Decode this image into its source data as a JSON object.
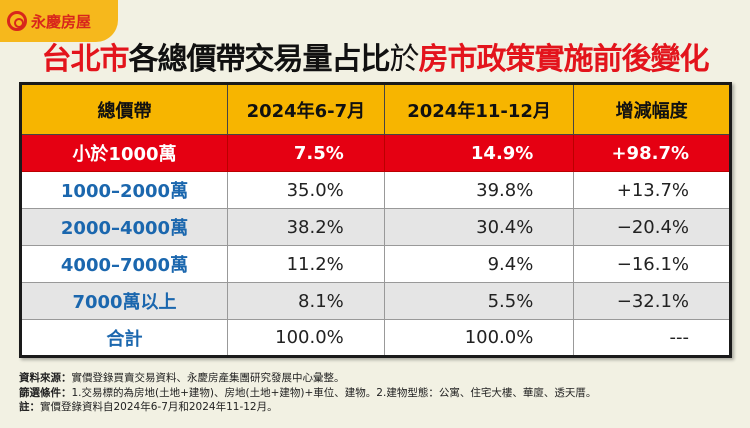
{
  "logo": {
    "text": "永慶房屋"
  },
  "title": {
    "part1": "台北市",
    "part2": "各總價帶交易量占比",
    "part3": "於",
    "part4": "房市政策實施前後變化"
  },
  "table": {
    "headers": [
      "總價帶",
      "2024年6-7月",
      "2024年11-12月",
      "增減幅度"
    ],
    "rows": [
      [
        "小於1000萬",
        "7.5%",
        "14.9%",
        "+98.7%"
      ],
      [
        "1000–2000萬",
        "35.0%",
        "39.8%",
        "+13.7%"
      ],
      [
        "2000–4000萬",
        "38.2%",
        "30.4%",
        "−20.4%"
      ],
      [
        "4000–7000萬",
        "11.2%",
        "9.4%",
        "−16.1%"
      ],
      [
        "7000萬以上",
        "8.1%",
        "5.5%",
        "−32.1%"
      ],
      [
        "合計",
        "100.0%",
        "100.0%",
        "---"
      ]
    ]
  },
  "notes": [
    {
      "label": "資料來源：",
      "text": "實價登錄買賣交易資料、永慶房產集團研究發展中心彙整。"
    },
    {
      "label": "篩選條件：",
      "text": "1.交易標的為房地(土地+建物)、房地(土地+建物)+車位、建物。2.建物型態：公寓、住宅大樓、華廈、透天厝。"
    },
    {
      "label": "註：",
      "text": "實價登錄資料自2024年6-7月和2024年11-12月。"
    }
  ],
  "colors": {
    "highlight": "#e50012",
    "header": "#f7b500",
    "category": "#1b67ae",
    "background": "#f2f1e3"
  }
}
